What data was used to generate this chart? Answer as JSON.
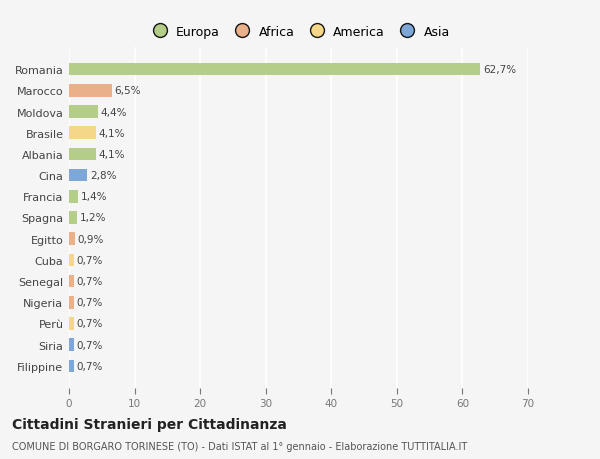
{
  "countries": [
    "Romania",
    "Marocco",
    "Moldova",
    "Brasile",
    "Albania",
    "Cina",
    "Francia",
    "Spagna",
    "Egitto",
    "Cuba",
    "Senegal",
    "Nigeria",
    "Perù",
    "Siria",
    "Filippine"
  ],
  "values": [
    62.7,
    6.5,
    4.4,
    4.1,
    4.1,
    2.8,
    1.4,
    1.2,
    0.9,
    0.7,
    0.7,
    0.7,
    0.7,
    0.7,
    0.7
  ],
  "labels": [
    "62,7%",
    "6,5%",
    "4,4%",
    "4,1%",
    "4,1%",
    "2,8%",
    "1,4%",
    "1,2%",
    "0,9%",
    "0,7%",
    "0,7%",
    "0,7%",
    "0,7%",
    "0,7%",
    "0,7%"
  ],
  "colors": [
    "#adc97d",
    "#e8a97e",
    "#adc97d",
    "#f5d47e",
    "#adc97d",
    "#6f9fd4",
    "#adc97d",
    "#adc97d",
    "#e8a97e",
    "#f5d47e",
    "#e8a97e",
    "#e8a97e",
    "#f5d47e",
    "#6f9fd4",
    "#6f9fd4"
  ],
  "legend_names": [
    "Europa",
    "Africa",
    "America",
    "Asia"
  ],
  "legend_colors": [
    "#adc97d",
    "#e8a97e",
    "#f5d47e",
    "#6f9fd4"
  ],
  "xlim": [
    0,
    70
  ],
  "xticks": [
    0,
    10,
    20,
    30,
    40,
    50,
    60,
    70
  ],
  "title": "Cittadini Stranieri per Cittadinanza",
  "subtitle": "COMUNE DI BORGARO TORINESE (TO) - Dati ISTAT al 1° gennaio - Elaborazione TUTTITALIA.IT",
  "background_color": "#f5f5f5",
  "grid_color": "#ffffff",
  "bar_height": 0.6
}
